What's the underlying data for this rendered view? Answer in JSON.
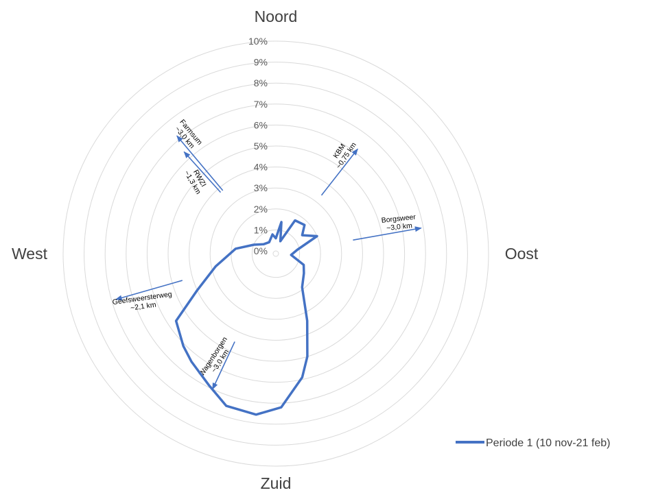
{
  "chart_data": {
    "type": "radar",
    "direction_labels": {
      "north": "Noord",
      "east": "Oost",
      "south": "Zuid",
      "west": "West"
    },
    "radial_ticks": [
      "0%",
      "1%",
      "2%",
      "3%",
      "4%",
      "5%",
      "6%",
      "7%",
      "8%",
      "9%",
      "10%"
    ],
    "rlim": [
      0,
      10
    ],
    "unit": "%",
    "grid": true,
    "legend": "bottom-right",
    "series": [
      {
        "name": "Periode 1 (10 nov-21 feb)",
        "color": "#4472c4",
        "points": [
          {
            "bearing": 0,
            "value": 0.6
          },
          {
            "bearing": 10,
            "value": 1.4
          },
          {
            "bearing": 20,
            "value": 0.5
          },
          {
            "bearing": 30,
            "value": 1.7
          },
          {
            "bearing": 45,
            "value": 1.8
          },
          {
            "bearing": 55,
            "value": 1.4
          },
          {
            "bearing": 67,
            "value": 2.0
          },
          {
            "bearing": 80,
            "value": 0.9
          },
          {
            "bearing": 95,
            "value": 0.6
          },
          {
            "bearing": 112,
            "value": 1.3
          },
          {
            "bearing": 125,
            "value": 1.5
          },
          {
            "bearing": 142,
            "value": 1.9
          },
          {
            "bearing": 155,
            "value": 3.4
          },
          {
            "bearing": 163,
            "value": 5.0
          },
          {
            "bearing": 168,
            "value": 5.9
          },
          {
            "bearing": 178,
            "value": 7.2
          },
          {
            "bearing": 187,
            "value": 7.6
          },
          {
            "bearing": 198,
            "value": 7.5
          },
          {
            "bearing": 207,
            "value": 6.9
          },
          {
            "bearing": 218,
            "value": 6.4
          },
          {
            "bearing": 225,
            "value": 6.1
          },
          {
            "bearing": 236,
            "value": 5.6
          },
          {
            "bearing": 245,
            "value": 4.0
          },
          {
            "bearing": 258,
            "value": 2.8
          },
          {
            "bearing": 277,
            "value": 1.8
          },
          {
            "bearing": 292,
            "value": 1.0
          },
          {
            "bearing": 308,
            "value": 0.6
          },
          {
            "bearing": 330,
            "value": 0.5
          },
          {
            "bearing": 350,
            "value": 0.8
          }
        ]
      }
    ],
    "annotations": [
      {
        "lines": [
          "KBM",
          "~0,75 km"
        ],
        "bearing": 38,
        "arrow_start": 3.4,
        "arrow_end": 6.2,
        "rotate": -56,
        "text_r": 5.6,
        "text_side": -1
      },
      {
        "lines": [
          "Borgsweer",
          "~3,0 km"
        ],
        "bearing": 80,
        "arrow_start": 3.6,
        "arrow_end": 6.9,
        "rotate": -6,
        "text_r": 5.9,
        "text_side": -1
      },
      {
        "lines": [
          "Farmsum",
          "~3,0 km"
        ],
        "bearing": 320,
        "arrow_start": 3.8,
        "arrow_end": 7.2,
        "rotate": 50,
        "text_r": 6.9,
        "text_side": 1
      },
      {
        "lines": [
          "RWZI",
          "~1,3 km"
        ],
        "bearing": 318,
        "arrow_start": 3.8,
        "arrow_end": 6.4,
        "rotate": 60,
        "text_r": 5.0,
        "text_side": -1
      },
      {
        "lines": [
          "Geefsweersterweg",
          "~2,1 km"
        ],
        "bearing": 254,
        "arrow_start": 4.5,
        "arrow_end": 7.8,
        "rotate": -8,
        "text_r": 6.6,
        "text_side": -1
      },
      {
        "lines": [
          "Wagenborgen",
          "~3,0 km"
        ],
        "bearing": 205,
        "arrow_start": 4.5,
        "arrow_end": 7.0,
        "rotate": -57,
        "text_r": 5.6,
        "text_side": 1
      }
    ]
  }
}
